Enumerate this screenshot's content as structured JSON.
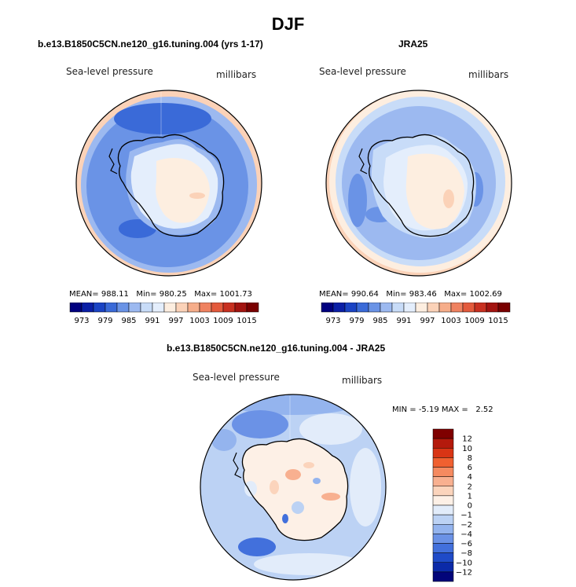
{
  "title": "DJF",
  "panels": [
    {
      "title": "b.e13.B1850C5CN.ne120_g16.tuning.004 (yrs 1-17)",
      "field": "Sea-level pressure",
      "units": "millibars",
      "stats": {
        "mean_label": "MEAN=",
        "mean": "988.11",
        "min_label": "Min=",
        "min": "980.25",
        "max_label": "Max=",
        "max": "1001.73"
      }
    },
    {
      "title": "JRA25",
      "field": "Sea-level pressure",
      "units": "millibars",
      "stats": {
        "mean_label": "MEAN=",
        "mean": "990.64",
        "min_label": "Min=",
        "min": "983.46",
        "max_label": "Max=",
        "max": "1002.69"
      }
    },
    {
      "title": "b.e13.B1850C5CN.ne120_g16.tuning.004 - JRA25",
      "field": "Sea-level pressure",
      "units": "millibars",
      "stats": {
        "min_label": "MIN =",
        "min": "-5.19",
        "max_label": "MAX =",
        "max": "2.52"
      }
    }
  ],
  "chart_data": [
    {
      "type": "heatmap",
      "title": "b.e13.B1850C5CN.ne120_g16.tuning.004 (yrs 1-17)",
      "variable": "Sea-level pressure",
      "units": "millibars",
      "projection": "south polar stereographic",
      "mean": 988.11,
      "min": 980.25,
      "max": 1001.73,
      "colorbar_ticks": [
        973,
        979,
        985,
        991,
        997,
        1003,
        1009,
        1015
      ]
    },
    {
      "type": "heatmap",
      "title": "JRA25",
      "variable": "Sea-level pressure",
      "units": "millibars",
      "projection": "south polar stereographic",
      "mean": 990.64,
      "min": 983.46,
      "max": 1002.69,
      "colorbar_ticks": [
        973,
        979,
        985,
        991,
        997,
        1003,
        1009,
        1015
      ]
    },
    {
      "type": "heatmap",
      "title": "b.e13.B1850C5CN.ne120_g16.tuning.004 - JRA25",
      "variable": "Sea-level pressure",
      "units": "millibars",
      "projection": "south polar stereographic",
      "min": -5.19,
      "max": 2.52,
      "colorbar_ticks": [
        12,
        10,
        8,
        6,
        4,
        2,
        1,
        0,
        -1,
        -2,
        -4,
        -6,
        -8,
        -10,
        -12
      ]
    }
  ],
  "colors": {
    "abs_scale": [
      "#00007f",
      "#0a1fa6",
      "#1a43c4",
      "#3a6ad8",
      "#6a93e6",
      "#9cb9f0",
      "#c8dcf8",
      "#e4eefc",
      "#fdeee0",
      "#fbd2b8",
      "#f6ad8a",
      "#ef8260",
      "#e35a3c",
      "#c83020",
      "#a31410",
      "#7a0000"
    ],
    "diff_scale": [
      "#7f0000",
      "#b41a0c",
      "#d93515",
      "#f06030",
      "#f58a60",
      "#f8b090",
      "#fbd4bc",
      "#fdf0e6",
      "#e2ecfa",
      "#bcd2f4",
      "#94b4ee",
      "#6b92e6",
      "#4270dc",
      "#1f4bc8",
      "#0b2aa8",
      "#02057a"
    ]
  }
}
